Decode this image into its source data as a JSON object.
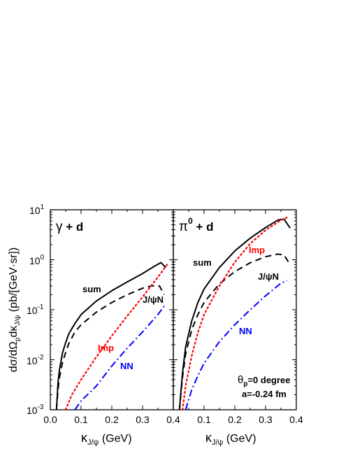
{
  "ylabel_pre": "dσ/dΩ",
  "ylabel_sub1": "p",
  "ylabel_mid": "dκ",
  "ylabel_sub2": "J/ψ",
  "ylabel_post": " (pb/[GeV·sr])",
  "y_tick_base": "10",
  "xlabel_main": "κ",
  "xlabel_sub": "J/ψ",
  "xlabel_unit": " (GeV)",
  "annotation_theta": "θ",
  "annotation_theta_sub": "p",
  "annotation_theta_rest": "=0 degree",
  "annotation_a": "a=-0.24 fm",
  "colors": {
    "sum": "#000000",
    "jpsiN": "#000000",
    "imp": "#ff0000",
    "nn": "#0000ff"
  },
  "chart_data": [
    {
      "type": "line",
      "title_main": "γ",
      "title_rest": " + d",
      "x_ticks": [
        "0.0",
        "0.1",
        "0.2",
        "0.3",
        "0.4"
      ],
      "y_scale": "log",
      "xlim": [
        0.0,
        0.4
      ],
      "ylim": [
        0.001,
        10
      ],
      "y_tick_exponents": [
        "-3",
        "-2",
        "-1",
        "0",
        "1"
      ],
      "series": [
        {
          "name": "sum",
          "style": "solid",
          "x": [
            0.02,
            0.025,
            0.03,
            0.04,
            0.05,
            0.06,
            0.08,
            0.1,
            0.15,
            0.2,
            0.25,
            0.3,
            0.34,
            0.36,
            0.375
          ],
          "y": [
            0.001,
            0.0035,
            0.0065,
            0.014,
            0.022,
            0.033,
            0.053,
            0.08,
            0.15,
            0.24,
            0.36,
            0.53,
            0.75,
            0.88,
            0.7
          ]
        },
        {
          "name": "J/ψN",
          "style": "dashed",
          "x": [
            0.02,
            0.025,
            0.03,
            0.04,
            0.05,
            0.06,
            0.08,
            0.1,
            0.15,
            0.2,
            0.25,
            0.3,
            0.33,
            0.355,
            0.37
          ],
          "y": [
            0.001,
            0.0025,
            0.0045,
            0.009,
            0.014,
            0.021,
            0.036,
            0.05,
            0.09,
            0.14,
            0.2,
            0.27,
            0.3,
            0.3,
            0.2
          ]
        },
        {
          "name": "Imp",
          "style": "dotted",
          "x": [
            0.05,
            0.07,
            0.1,
            0.15,
            0.2,
            0.25,
            0.3,
            0.35,
            0.38
          ],
          "y": [
            0.001,
            0.002,
            0.004,
            0.0115,
            0.03,
            0.075,
            0.18,
            0.45,
            0.8
          ]
        },
        {
          "name": "NN",
          "style": "dashdot",
          "x": [
            0.08,
            0.1,
            0.15,
            0.2,
            0.25,
            0.3,
            0.35,
            0.375
          ],
          "y": [
            0.001,
            0.0015,
            0.003,
            0.0075,
            0.017,
            0.036,
            0.08,
            0.13
          ]
        }
      ]
    },
    {
      "type": "line",
      "title_main": "π",
      "title_sup": "0",
      "title_rest": " + d",
      "x_ticks": [
        "0.1",
        "0.2",
        "0.3",
        "0.4"
      ],
      "y_scale": "log",
      "xlim": [
        0.0,
        0.4
      ],
      "ylim": [
        0.001,
        10
      ],
      "series": [
        {
          "name": "sum",
          "style": "solid",
          "x": [
            0.02,
            0.03,
            0.04,
            0.06,
            0.08,
            0.1,
            0.15,
            0.2,
            0.25,
            0.3,
            0.34,
            0.36,
            0.38
          ],
          "y": [
            0.001,
            0.0055,
            0.018,
            0.06,
            0.14,
            0.26,
            0.7,
            1.5,
            2.7,
            4.4,
            6.2,
            6.5,
            4.3
          ]
        },
        {
          "name": "J/ψN",
          "style": "dashed",
          "x": [
            0.02,
            0.03,
            0.04,
            0.06,
            0.08,
            0.1,
            0.15,
            0.2,
            0.25,
            0.3,
            0.34,
            0.36,
            0.38
          ],
          "y": [
            0.001,
            0.0045,
            0.013,
            0.04,
            0.08,
            0.14,
            0.33,
            0.58,
            0.87,
            1.15,
            1.3,
            1.25,
            0.8
          ]
        },
        {
          "name": "Imp",
          "style": "dotted",
          "x": [
            0.03,
            0.04,
            0.06,
            0.08,
            0.1,
            0.15,
            0.2,
            0.25,
            0.3,
            0.35,
            0.37
          ],
          "y": [
            0.001,
            0.003,
            0.012,
            0.035,
            0.08,
            0.3,
            0.9,
            2.1,
            3.9,
            6.2,
            7.0
          ]
        },
        {
          "name": "NN",
          "style": "dashdot",
          "x": [
            0.04,
            0.06,
            0.08,
            0.1,
            0.15,
            0.2,
            0.25,
            0.3,
            0.35,
            0.37
          ],
          "y": [
            0.001,
            0.0025,
            0.0048,
            0.0085,
            0.023,
            0.05,
            0.1,
            0.19,
            0.34,
            0.38
          ]
        }
      ]
    }
  ]
}
